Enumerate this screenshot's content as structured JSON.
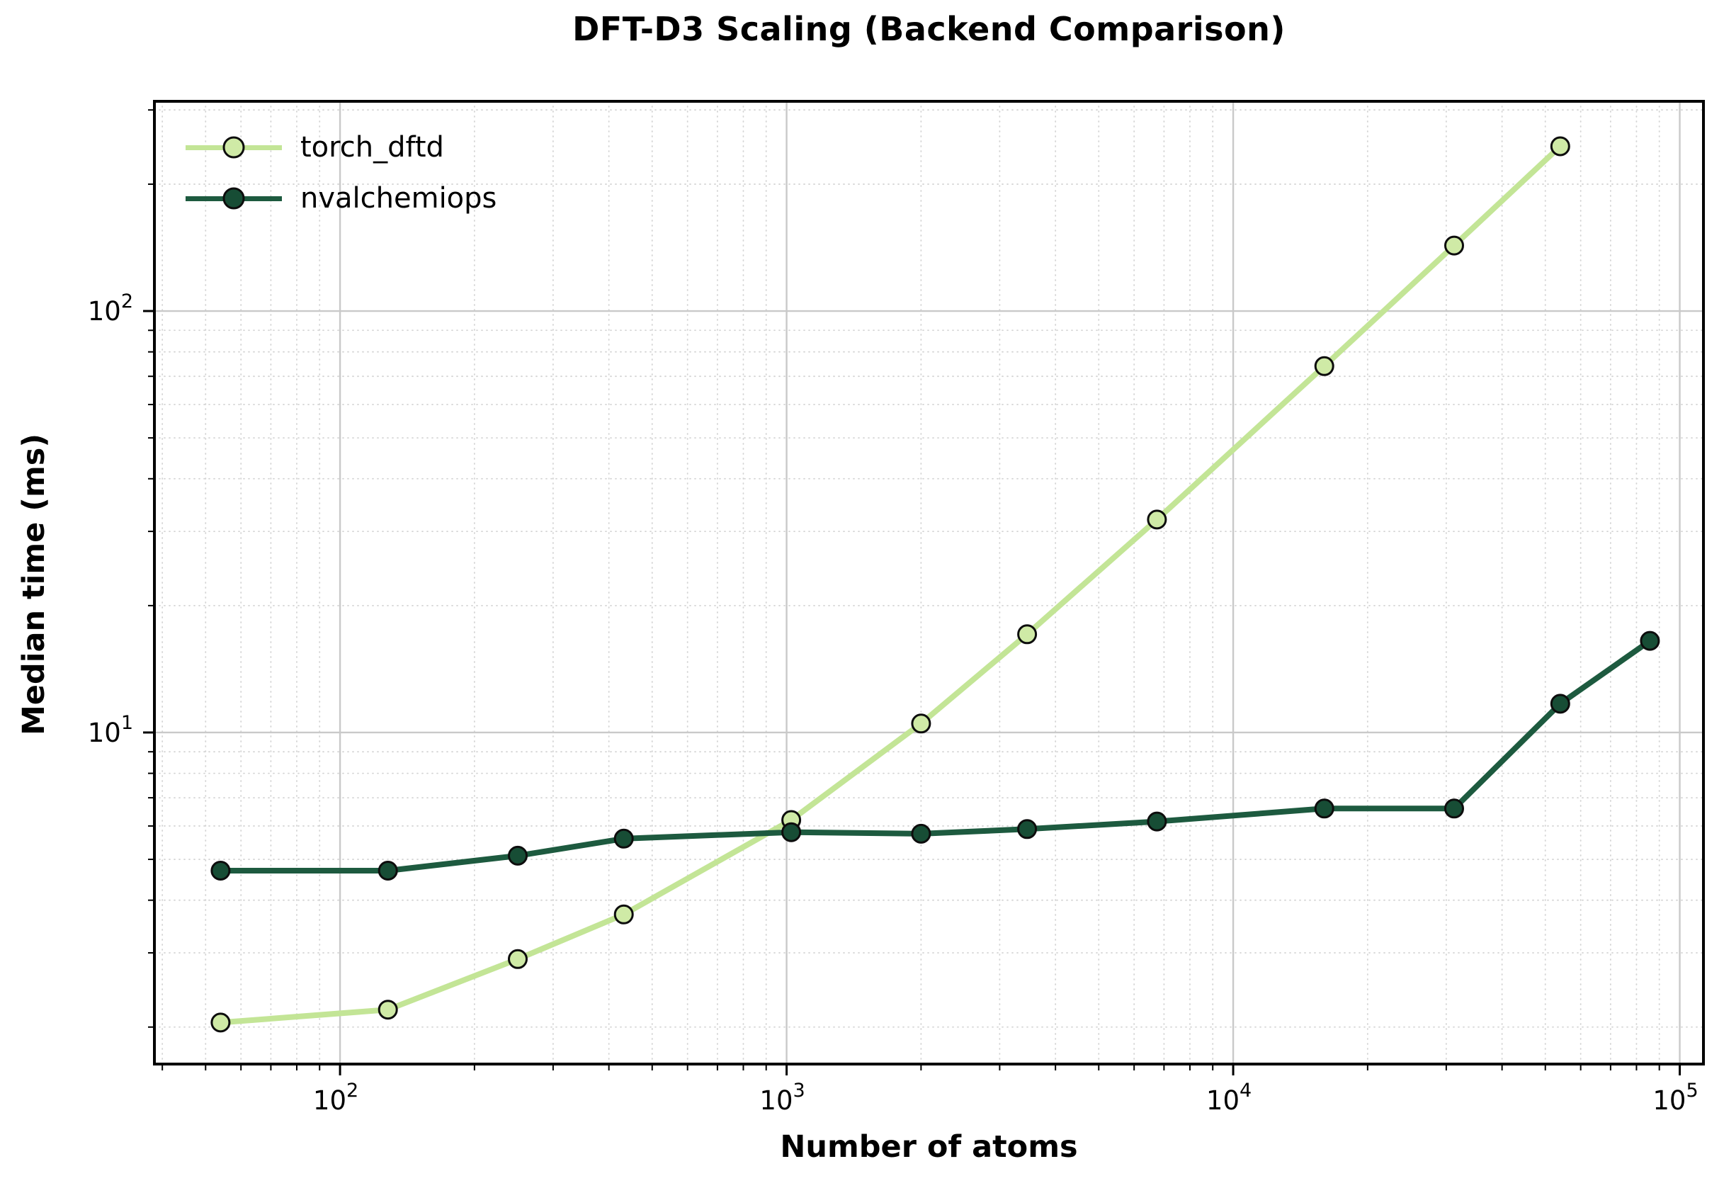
{
  "title": "DFT-D3 Scaling (Backend Comparison)",
  "axes": {
    "xlabel": "Number of atoms",
    "ylabel": "Median time (ms)"
  },
  "legend": {
    "entries": [
      "torch_dftd",
      "nvalchemiops"
    ]
  },
  "colors": {
    "torch_dftd_line": "#c3e596",
    "torch_dftd_marker": "#cfeaa6",
    "nvalchemiops_line": "#1d5a3f",
    "nvalchemiops_marker": "#174d35",
    "marker_edge": "#0d0d0d",
    "grid_major": "#c9c9c9",
    "grid_minor": "#d4d4d4",
    "spine": "#000000",
    "text": "#000000"
  },
  "chart_data": {
    "type": "line",
    "title": "DFT-D3 Scaling (Backend Comparison)",
    "xlabel": "Number of atoms",
    "ylabel": "Median time (ms)",
    "xscale": "log",
    "yscale": "log",
    "xlim": [
      38.4,
      113000
    ],
    "ylim": [
      1.634,
      314.5
    ],
    "x_major_ticks": [
      100,
      1000,
      10000,
      100000
    ],
    "y_major_ticks": [
      10,
      100
    ],
    "grid": "major solid, minor dotted, both axes",
    "legend_position": "upper left",
    "series": [
      {
        "name": "torch_dftd",
        "x": [
          54,
          128,
          250,
          432,
          1024,
          2000,
          3456,
          6750,
          16000,
          31250,
          54000
        ],
        "y": [
          2.05,
          2.2,
          2.9,
          3.7,
          6.2,
          10.5,
          17.1,
          32,
          74,
          143,
          246
        ]
      },
      {
        "name": "nvalchemiops",
        "x": [
          54,
          128,
          250,
          432,
          1024,
          2000,
          3456,
          6750,
          16000,
          31250,
          54000,
          85750
        ],
        "y": [
          4.7,
          4.7,
          5.1,
          5.6,
          5.8,
          5.75,
          5.9,
          6.15,
          6.6,
          6.6,
          11.7,
          16.5
        ]
      }
    ]
  }
}
